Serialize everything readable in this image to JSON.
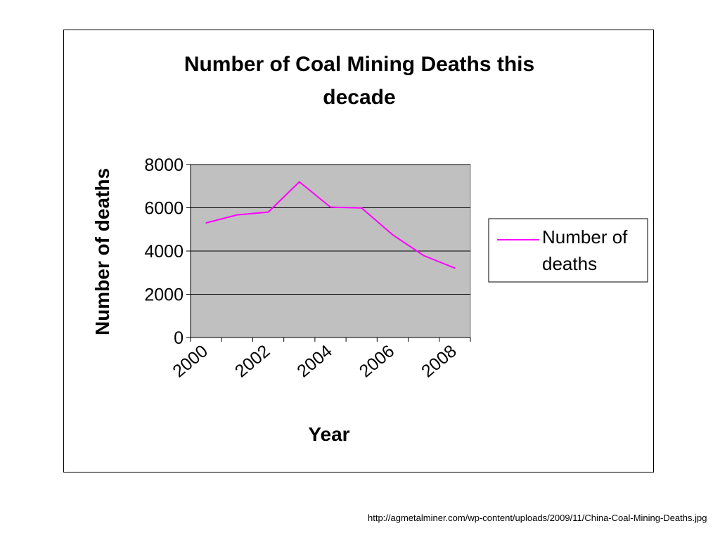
{
  "chart_data": {
    "type": "line",
    "title_lines": [
      "Number of Coal Mining Deaths this",
      "decade"
    ],
    "xlabel": "Year",
    "ylabel": "Number of deaths",
    "x": [
      2000,
      2001,
      2002,
      2003,
      2004,
      2005,
      2006,
      2007,
      2008
    ],
    "x_tick_labels": [
      "2000",
      "2002",
      "2004",
      "2006",
      "2008"
    ],
    "ylim": [
      0,
      8000
    ],
    "y_ticks": [
      0,
      2000,
      4000,
      6000,
      8000
    ],
    "series": [
      {
        "name": "Number of deaths",
        "legend_lines": [
          "Number of",
          "deaths"
        ],
        "color": "#ff00ff",
        "values": [
          5300,
          5670,
          5800,
          7200,
          6030,
          5990,
          4750,
          3790,
          3210
        ]
      }
    ],
    "plot_background": "#c0c0c0",
    "grid": true,
    "legend_position": "right"
  },
  "source_caption": "http://agmetalminer.com/wp-content/uploads/2009/11/China-Coal-Mining-Deaths.jpg"
}
